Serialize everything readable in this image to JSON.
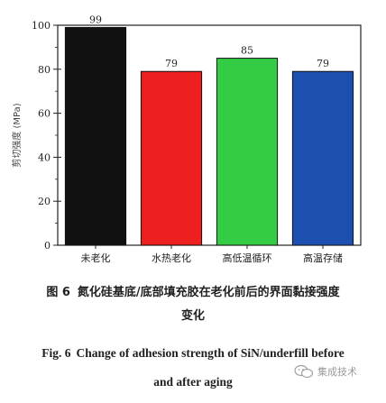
{
  "chart_data": {
    "type": "bar",
    "categories": [
      "未老化",
      "水热老化",
      "高低温循环",
      "高温存储"
    ],
    "values": [
      99,
      79,
      85,
      79
    ],
    "data_labels": [
      "99",
      "79",
      "85",
      "79"
    ],
    "colors": [
      "#111111",
      "#ee1f1f",
      "#33cc44",
      "#1c4fb0"
    ],
    "title": "",
    "xlabel": "",
    "ylabel": "剪切强度 (MPa)",
    "ylim": [
      0,
      100
    ],
    "yticks": [
      "0",
      "20",
      "40",
      "60",
      "80",
      "100"
    ],
    "ytick_values": [
      0,
      20,
      40,
      60,
      80,
      100
    ],
    "grid": false,
    "legend": "none"
  },
  "caption": {
    "cn_fig_no": "图 6",
    "cn_line1": "氮化硅基底/底部填充胶在老化前后的界面黏接强度",
    "cn_line2": "变化",
    "en_fig_no": "Fig. 6",
    "en_line1": "Change of adhesion strength of SiN/underfill before",
    "en_line2": "and after aging"
  },
  "watermark": {
    "text": "集成技术",
    "icon": "wechat-icon"
  }
}
